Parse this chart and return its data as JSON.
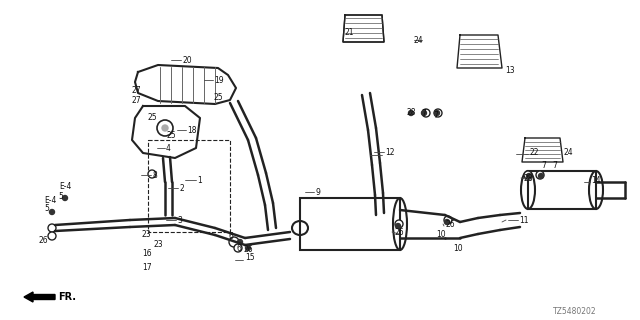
{
  "bg_color": "#ffffff",
  "diagram_code": "TZ5480202",
  "fr_label": "FR.",
  "line_color": "#222222",
  "label_color": "#111111",
  "rib_color": "#555555"
}
